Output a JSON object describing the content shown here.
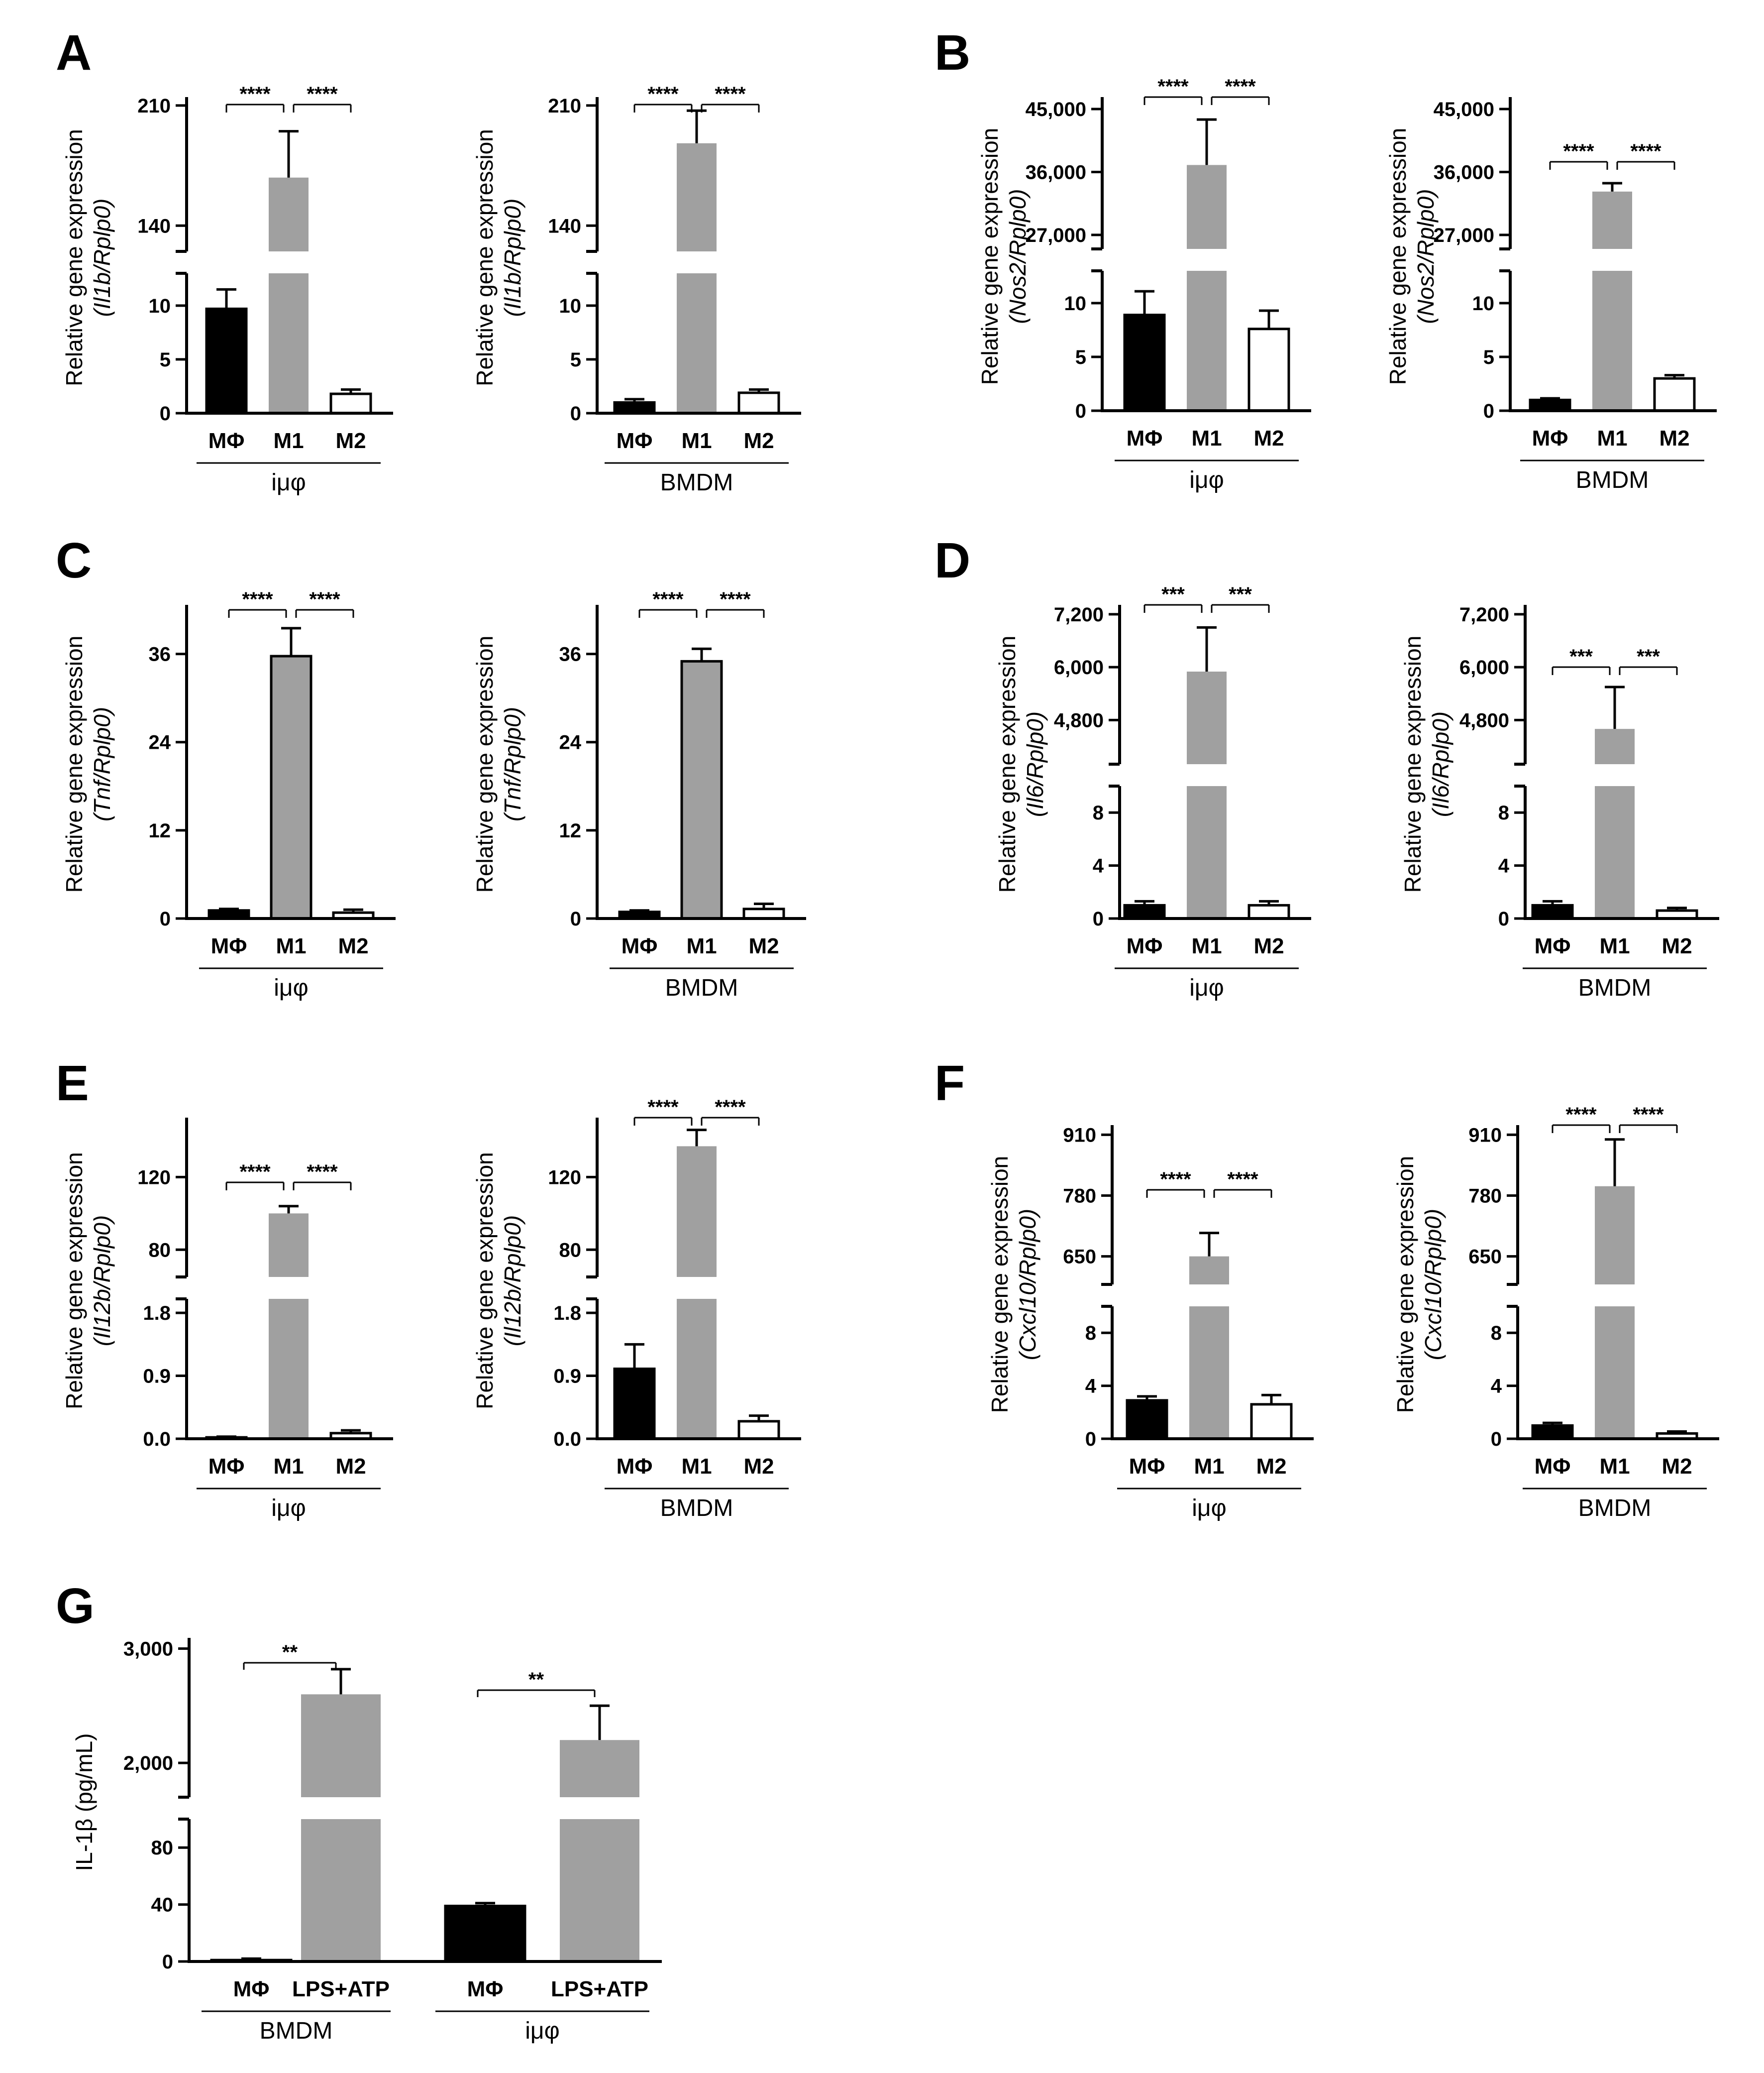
{
  "panel_labels": [
    "A",
    "B",
    "C",
    "D",
    "E",
    "F",
    "G"
  ],
  "chart_data": [
    {
      "id": "A-imp",
      "panel": "A",
      "type": "bar",
      "group": "iμφ",
      "ylabel": "Relative gene expression",
      "ylabel2": "(Il1b/Rplp0)",
      "categories": [
        "MΦ",
        "M1",
        "M2"
      ],
      "values": [
        9.7,
        168,
        1.8
      ],
      "errors": [
        1.8,
        27,
        0.4
      ],
      "colors": [
        "#000000",
        "#a0a0a0",
        "#ffffff"
      ],
      "lower": {
        "range": [
          0,
          13
        ],
        "ticks": [
          0,
          5,
          10
        ],
        "labels": [
          "0",
          "5",
          "10"
        ]
      },
      "upper": {
        "range": [
          125,
          212
        ],
        "ticks": [
          140,
          210
        ],
        "labels": [
          "140",
          "210"
        ]
      },
      "sig": [
        {
          "from": 0,
          "to": 1,
          "label": "****"
        },
        {
          "from": 1,
          "to": 2,
          "label": "****"
        }
      ]
    },
    {
      "id": "A-bmdm",
      "panel": "A",
      "type": "bar",
      "group": "BMDM",
      "ylabel": "Relative gene expression",
      "ylabel2": "(Il1b/Rplp0)",
      "categories": [
        "MΦ",
        "M1",
        "M2"
      ],
      "values": [
        1.0,
        188,
        1.9
      ],
      "errors": [
        0.3,
        19,
        0.3
      ],
      "colors": [
        "#000000",
        "#a0a0a0",
        "#ffffff"
      ],
      "lower": {
        "range": [
          0,
          13
        ],
        "ticks": [
          0,
          5,
          10
        ],
        "labels": [
          "0",
          "5",
          "10"
        ]
      },
      "upper": {
        "range": [
          125,
          212
        ],
        "ticks": [
          140,
          210
        ],
        "labels": [
          "140",
          "210"
        ]
      },
      "sig": [
        {
          "from": 0,
          "to": 1,
          "label": "****"
        },
        {
          "from": 1,
          "to": 2,
          "label": "****"
        }
      ]
    },
    {
      "id": "B-imp",
      "panel": "B",
      "type": "bar",
      "group": "iμφ",
      "ylabel": "Relative gene expression",
      "ylabel2": "(Nos2/Rplp0)",
      "categories": [
        "MΦ",
        "M1",
        "M2"
      ],
      "values": [
        8.9,
        37000,
        7.6
      ],
      "errors": [
        2.2,
        6500,
        1.7
      ],
      "colors": [
        "#000000",
        "#a0a0a0",
        "#ffffff"
      ],
      "lower": {
        "range": [
          0,
          13
        ],
        "ticks": [
          0,
          5,
          10
        ],
        "labels": [
          "0",
          "5",
          "10"
        ]
      },
      "upper": {
        "range": [
          25000,
          46000
        ],
        "ticks": [
          27000,
          36000,
          45000
        ],
        "labels": [
          "27,000",
          "36,000",
          "45,000"
        ]
      },
      "sig": [
        {
          "from": 0,
          "to": 1,
          "label": "****"
        },
        {
          "from": 1,
          "to": 2,
          "label": "****"
        }
      ]
    },
    {
      "id": "B-bmdm",
      "panel": "B",
      "type": "bar",
      "group": "BMDM",
      "ylabel": "Relative gene expression",
      "ylabel2": "(Nos2/Rplp0)",
      "categories": [
        "MΦ",
        "M1",
        "M2"
      ],
      "values": [
        1.0,
        33200,
        3.0
      ],
      "errors": [
        0.15,
        1200,
        0.3
      ],
      "colors": [
        "#000000",
        "#a0a0a0",
        "#ffffff"
      ],
      "lower": {
        "range": [
          0,
          13
        ],
        "ticks": [
          0,
          5,
          10
        ],
        "labels": [
          "0",
          "5",
          "10"
        ]
      },
      "upper": {
        "range": [
          25000,
          46000
        ],
        "ticks": [
          27000,
          36000,
          45000
        ],
        "labels": [
          "27,000",
          "36,000",
          "45,000"
        ]
      },
      "sig": [
        {
          "from": 0,
          "to": 1,
          "label": "****"
        },
        {
          "from": 1,
          "to": 2,
          "label": "****"
        }
      ]
    },
    {
      "id": "C-imp",
      "panel": "C",
      "type": "bar",
      "group": "iμφ",
      "ylabel": "Relative gene expression",
      "ylabel2": "(Tnf/Rplp0)",
      "categories": [
        "MΦ",
        "M1",
        "M2"
      ],
      "values": [
        1.1,
        35.7,
        0.8
      ],
      "errors": [
        0.2,
        3.8,
        0.4
      ],
      "colors": [
        "#000000",
        "#a0a0a0",
        "#ffffff"
      ],
      "axis": {
        "range": [
          0,
          42
        ],
        "ticks": [
          0,
          12,
          24,
          36
        ],
        "labels": [
          "0",
          "12",
          "24",
          "36"
        ]
      },
      "sig": [
        {
          "from": 0,
          "to": 1,
          "label": "****"
        },
        {
          "from": 1,
          "to": 2,
          "label": "****"
        }
      ]
    },
    {
      "id": "C-bmdm",
      "panel": "C",
      "type": "bar",
      "group": "BMDM",
      "ylabel": "Relative gene expression",
      "ylabel2": "(Tnf/Rplp0)",
      "categories": [
        "MΦ",
        "M1",
        "M2"
      ],
      "values": [
        0.9,
        35.0,
        1.3
      ],
      "errors": [
        0.2,
        1.7,
        0.7
      ],
      "colors": [
        "#000000",
        "#a0a0a0",
        "#ffffff"
      ],
      "axis": {
        "range": [
          0,
          42
        ],
        "ticks": [
          0,
          12,
          24,
          36
        ],
        "labels": [
          "0",
          "12",
          "24",
          "36"
        ]
      },
      "sig": [
        {
          "from": 0,
          "to": 1,
          "label": "****"
        },
        {
          "from": 1,
          "to": 2,
          "label": "****"
        }
      ]
    },
    {
      "id": "D-imp",
      "panel": "D",
      "type": "bar",
      "group": "iμφ",
      "ylabel": "Relative gene expression",
      "ylabel2": "(Il6/Rplp0)",
      "categories": [
        "MΦ",
        "M1",
        "M2"
      ],
      "values": [
        1.0,
        5900,
        1.0
      ],
      "errors": [
        0.3,
        1000,
        0.3
      ],
      "colors": [
        "#000000",
        "#a0a0a0",
        "#ffffff"
      ],
      "lower": {
        "range": [
          0,
          10
        ],
        "ticks": [
          0,
          4,
          8
        ],
        "labels": [
          "0",
          "4",
          "8"
        ]
      },
      "upper": {
        "range": [
          3800,
          7300
        ],
        "ticks": [
          4800,
          6000,
          7200
        ],
        "labels": [
          "4,800",
          "6,000",
          "7,200"
        ]
      },
      "sig": [
        {
          "from": 0,
          "to": 1,
          "label": "***"
        },
        {
          "from": 1,
          "to": 2,
          "label": "***"
        }
      ]
    },
    {
      "id": "D-bmdm",
      "panel": "D",
      "type": "bar",
      "group": "BMDM",
      "ylabel": "Relative gene expression",
      "ylabel2": "(Il6/Rplp0)",
      "categories": [
        "MΦ",
        "M1",
        "M2"
      ],
      "values": [
        1.0,
        4600,
        0.6
      ],
      "errors": [
        0.3,
        950,
        0.2
      ],
      "colors": [
        "#000000",
        "#a0a0a0",
        "#ffffff"
      ],
      "lower": {
        "range": [
          0,
          10
        ],
        "ticks": [
          0,
          4,
          8
        ],
        "labels": [
          "0",
          "4",
          "8"
        ]
      },
      "upper": {
        "range": [
          3800,
          7300
        ],
        "ticks": [
          4800,
          6000,
          7200
        ],
        "labels": [
          "4,800",
          "6,000",
          "7,200"
        ]
      },
      "sig": [
        {
          "from": 0,
          "to": 1,
          "label": "***"
        },
        {
          "from": 1,
          "to": 2,
          "label": "***"
        }
      ]
    },
    {
      "id": "E-imp",
      "panel": "E",
      "type": "bar",
      "group": "iμφ",
      "ylabel": "Relative gene expression",
      "ylabel2": "(Il12b/Rplp0)",
      "categories": [
        "MΦ",
        "M1",
        "M2"
      ],
      "values": [
        0.02,
        100,
        0.08
      ],
      "errors": [
        0.01,
        4,
        0.04
      ],
      "colors": [
        "#000000",
        "#a0a0a0",
        "#ffffff"
      ],
      "lower": {
        "range": [
          0,
          2.0
        ],
        "ticks": [
          0,
          0.9,
          1.8
        ],
        "labels": [
          "0.0",
          "0.9",
          "1.8"
        ]
      },
      "upper": {
        "range": [
          65,
          150
        ],
        "ticks": [
          80,
          120
        ],
        "labels": [
          "80",
          "120"
        ]
      },
      "sig": [
        {
          "from": 0,
          "to": 1,
          "label": "****"
        },
        {
          "from": 1,
          "to": 2,
          "label": "****"
        }
      ]
    },
    {
      "id": "E-bmdm",
      "panel": "E",
      "type": "bar",
      "group": "BMDM",
      "ylabel": "Relative gene expression",
      "ylabel2": "(Il12b/Rplp0)",
      "categories": [
        "MΦ",
        "M1",
        "M2"
      ],
      "values": [
        1.0,
        137,
        0.25
      ],
      "errors": [
        0.35,
        9,
        0.08
      ],
      "colors": [
        "#000000",
        "#a0a0a0",
        "#ffffff"
      ],
      "lower": {
        "range": [
          0,
          2.0
        ],
        "ticks": [
          0,
          0.9,
          1.8
        ],
        "labels": [
          "0.0",
          "0.9",
          "1.8"
        ]
      },
      "upper": {
        "range": [
          65,
          150
        ],
        "ticks": [
          80,
          120
        ],
        "labels": [
          "80",
          "120"
        ]
      },
      "sig": [
        {
          "from": 0,
          "to": 1,
          "label": "****"
        },
        {
          "from": 1,
          "to": 2,
          "label": "****"
        }
      ]
    },
    {
      "id": "F-imp",
      "panel": "F",
      "type": "bar",
      "group": "iμφ",
      "ylabel": "Relative gene expression",
      "ylabel2": "(Cxcl10/Rplp0)",
      "categories": [
        "MΦ",
        "M1",
        "M2"
      ],
      "values": [
        2.9,
        650,
        2.6
      ],
      "errors": [
        0.3,
        50,
        0.7
      ],
      "colors": [
        "#000000",
        "#a0a0a0",
        "#ffffff"
      ],
      "lower": {
        "range": [
          0,
          10
        ],
        "ticks": [
          0,
          4,
          8
        ],
        "labels": [
          "0",
          "4",
          "8"
        ]
      },
      "upper": {
        "range": [
          590,
          920
        ],
        "ticks": [
          650,
          780,
          910
        ],
        "labels": [
          "650",
          "780",
          "910"
        ]
      },
      "sig": [
        {
          "from": 0,
          "to": 1,
          "label": "****"
        },
        {
          "from": 1,
          "to": 2,
          "label": "****"
        }
      ]
    },
    {
      "id": "F-bmdm",
      "panel": "F",
      "type": "bar",
      "group": "BMDM",
      "ylabel": "Relative gene expression",
      "ylabel2": "(Cxcl10/Rplp0)",
      "categories": [
        "MΦ",
        "M1",
        "M2"
      ],
      "values": [
        1.0,
        800,
        0.4
      ],
      "errors": [
        0.2,
        100,
        0.15
      ],
      "colors": [
        "#000000",
        "#a0a0a0",
        "#ffffff"
      ],
      "lower": {
        "range": [
          0,
          10
        ],
        "ticks": [
          0,
          4,
          8
        ],
        "labels": [
          "0",
          "4",
          "8"
        ]
      },
      "upper": {
        "range": [
          590,
          920
        ],
        "ticks": [
          650,
          780,
          910
        ],
        "labels": [
          "650",
          "780",
          "910"
        ]
      },
      "sig": [
        {
          "from": 0,
          "to": 1,
          "label": "****"
        },
        {
          "from": 1,
          "to": 2,
          "label": "****"
        }
      ]
    },
    {
      "id": "G",
      "panel": "G",
      "type": "bar",
      "ylabel": "IL-1β (pg/mL)",
      "categories": [
        "MΦ",
        "LPS+ATP",
        "MΦ",
        "LPS+ATP"
      ],
      "groups": [
        "BMDM",
        "iμφ"
      ],
      "values": [
        1,
        2600,
        39,
        2200
      ],
      "errors": [
        1,
        220,
        2,
        300
      ],
      "colors": [
        "#000000",
        "#a0a0a0",
        "#000000",
        "#a0a0a0"
      ],
      "lower": {
        "range": [
          0,
          100
        ],
        "ticks": [
          0,
          40,
          80
        ],
        "labels": [
          "0",
          "40",
          "80"
        ]
      },
      "upper": {
        "range": [
          1700,
          3050
        ],
        "ticks": [
          2000,
          3000
        ],
        "labels": [
          "2,000",
          "3,000"
        ]
      },
      "sig": [
        {
          "from": 0,
          "to": 1,
          "label": "**"
        },
        {
          "from": 2,
          "to": 3,
          "label": "**"
        }
      ]
    }
  ]
}
